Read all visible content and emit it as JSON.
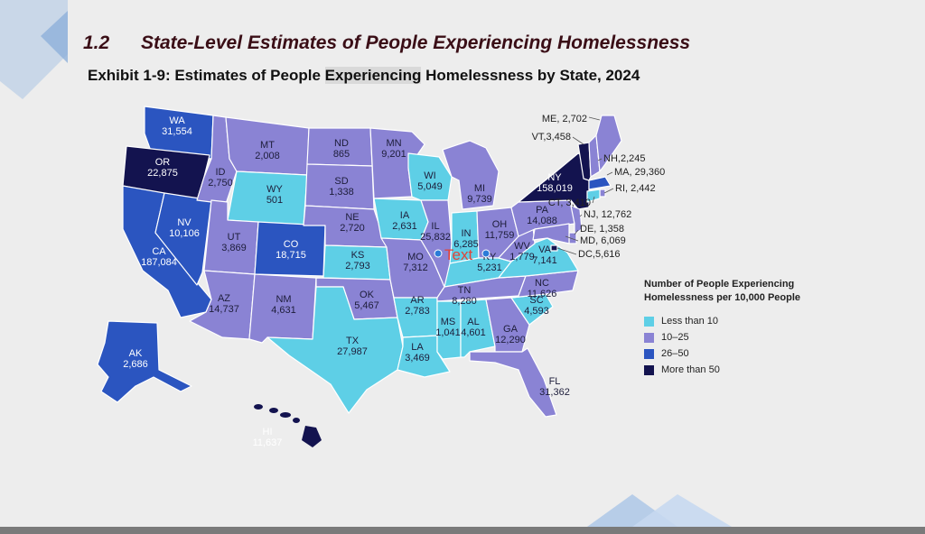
{
  "header": {
    "section_number": "1.2",
    "section_title": "State-Level Estimates of People Experiencing Homelessness",
    "exhibit_prefix": "Exhibit 1-9: Estimates of People ",
    "exhibit_highlight": "Experiencing",
    "exhibit_suffix": " Homelessness by State, 2024"
  },
  "legend": {
    "title_line1": "Number of People Experiencing",
    "title_line2": "Homelessness per 10,000 People",
    "items": [
      {
        "label": "Less than 10",
        "color": "#5ecfe6"
      },
      {
        "label": "10–25",
        "color": "#8a83d4"
      },
      {
        "label": "26–50",
        "color": "#2b55c0"
      },
      {
        "label": "More than 50",
        "color": "#13134f"
      }
    ]
  },
  "annotation": {
    "text": "Text",
    "color": "#e0443a"
  },
  "states": {
    "WA": {
      "abbr": "WA",
      "value": "31,554",
      "tier": 3
    },
    "OR": {
      "abbr": "OR",
      "value": "22,875",
      "tier": 4
    },
    "CA": {
      "abbr": "CA",
      "value": "187,084",
      "tier": 3
    },
    "NV": {
      "abbr": "NV",
      "value": "10,106",
      "tier": 3
    },
    "ID": {
      "abbr": "ID",
      "value": "2,750",
      "tier": 2
    },
    "MT": {
      "abbr": "MT",
      "value": "2,008",
      "tier": 2
    },
    "WY": {
      "abbr": "WY",
      "value": "501",
      "tier": 1
    },
    "UT": {
      "abbr": "UT",
      "value": "3,869",
      "tier": 2
    },
    "AZ": {
      "abbr": "AZ",
      "value": "14,737",
      "tier": 2
    },
    "CO": {
      "abbr": "CO",
      "value": "18,715",
      "tier": 3
    },
    "NM": {
      "abbr": "NM",
      "value": "4,631",
      "tier": 2
    },
    "ND": {
      "abbr": "ND",
      "value": "865",
      "tier": 2
    },
    "SD": {
      "abbr": "SD",
      "value": "1,338",
      "tier": 2
    },
    "NE": {
      "abbr": "NE",
      "value": "2,720",
      "tier": 2
    },
    "KS": {
      "abbr": "KS",
      "value": "2,793",
      "tier": 1
    },
    "OK": {
      "abbr": "OK",
      "value": "5,467",
      "tier": 2
    },
    "TX": {
      "abbr": "TX",
      "value": "27,987",
      "tier": 1
    },
    "MN": {
      "abbr": "MN",
      "value": "9,201",
      "tier": 2
    },
    "IA": {
      "abbr": "IA",
      "value": "2,631",
      "tier": 1
    },
    "MO": {
      "abbr": "MO",
      "value": "7,312",
      "tier": 2
    },
    "AR": {
      "abbr": "AR",
      "value": "2,783",
      "tier": 1
    },
    "LA": {
      "abbr": "LA",
      "value": "3,469",
      "tier": 1
    },
    "WI": {
      "abbr": "WI",
      "value": "5,049",
      "tier": 1
    },
    "IL": {
      "abbr": "IL",
      "value": "25,832",
      "tier": 2
    },
    "MI": {
      "abbr": "MI",
      "value": "9,739",
      "tier": 2
    },
    "IN": {
      "abbr": "IN",
      "value": "6,285",
      "tier": 1
    },
    "OH": {
      "abbr": "OH",
      "value": "11,759",
      "tier": 2
    },
    "KY": {
      "abbr": "KY",
      "value": "5,231",
      "tier": 1
    },
    "TN": {
      "abbr": "TN",
      "value": "8,280",
      "tier": 2
    },
    "MS": {
      "abbr": "MS",
      "value": "1,041",
      "tier": 1
    },
    "AL": {
      "abbr": "AL",
      "value": "4,601",
      "tier": 1
    },
    "GA": {
      "abbr": "GA",
      "value": "12,290",
      "tier": 2
    },
    "FL": {
      "abbr": "FL",
      "value": "31,362",
      "tier": 2
    },
    "SC": {
      "abbr": "SC",
      "value": "4,593",
      "tier": 1
    },
    "NC": {
      "abbr": "NC",
      "value": "11,626",
      "tier": 2
    },
    "VA": {
      "abbr": "VA",
      "value": "7,141",
      "tier": 1
    },
    "WV": {
      "abbr": "WV",
      "value": "1,779",
      "tier": 2
    },
    "PA": {
      "abbr": "PA",
      "value": "14,088",
      "tier": 2
    },
    "NY": {
      "abbr": "NY",
      "value": "158,019",
      "tier": 4
    },
    "VT": {
      "abbr": "VT",
      "value": "3,458",
      "tier": 4
    },
    "NH": {
      "abbr": "NH",
      "value": "2,245",
      "tier": 2
    },
    "ME": {
      "abbr": "ME",
      "value": "2,702",
      "tier": 2
    },
    "MA": {
      "abbr": "MA",
      "value": "29,360",
      "tier": 3
    },
    "RI": {
      "abbr": "RI",
      "value": "2,442",
      "tier": 2
    },
    "CT": {
      "abbr": "CT",
      "value": "3,410",
      "tier": 1
    },
    "NJ": {
      "abbr": "NJ",
      "value": "12,762",
      "tier": 2
    },
    "DE": {
      "abbr": "DE",
      "value": "1,358",
      "tier": 2
    },
    "MD": {
      "abbr": "MD",
      "value": "6,069",
      "tier": 2
    },
    "DC": {
      "abbr": "DC",
      "value": "5,616",
      "tier": 4
    },
    "AK": {
      "abbr": "AK",
      "value": "2,686",
      "tier": 3
    },
    "HI": {
      "abbr": "HI",
      "value": "11,637",
      "tier": 4
    }
  }
}
